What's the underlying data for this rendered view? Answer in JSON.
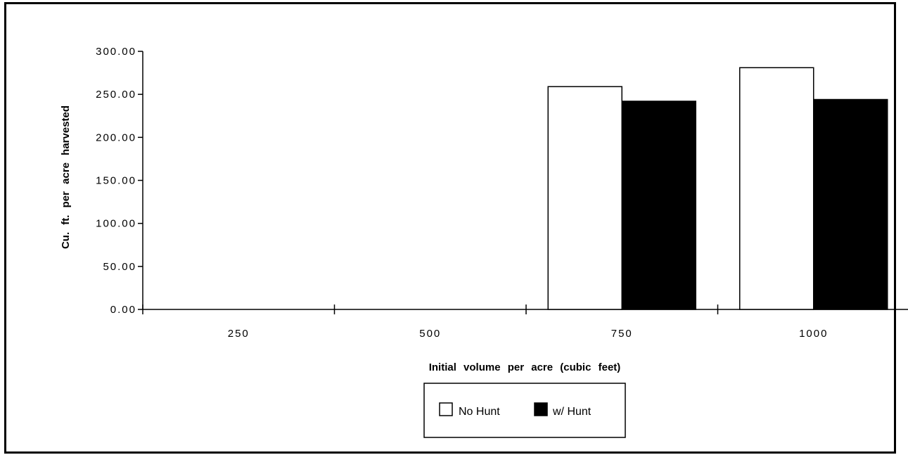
{
  "chart_data": {
    "type": "bar",
    "categories": [
      "250",
      "500",
      "750",
      "1000"
    ],
    "series": [
      {
        "name": "No Hunt",
        "values": [
          null,
          null,
          259,
          281
        ],
        "color": "#ffffff"
      },
      {
        "name": "w/  Hunt",
        "values": [
          null,
          null,
          242,
          244
        ],
        "color": "#000000"
      }
    ],
    "title": "",
    "xlabel": "Initial  volume  per  acre  (cubic  feet)",
    "ylabel": "Cu.  ft.  per  acre  harvested",
    "ylim": [
      0,
      300
    ],
    "yticks": [
      "0.00",
      "50.00",
      "100.00",
      "150.00",
      "200.00",
      "250.00",
      "300.00"
    ],
    "grid": false,
    "legend_position": "bottom-center"
  }
}
